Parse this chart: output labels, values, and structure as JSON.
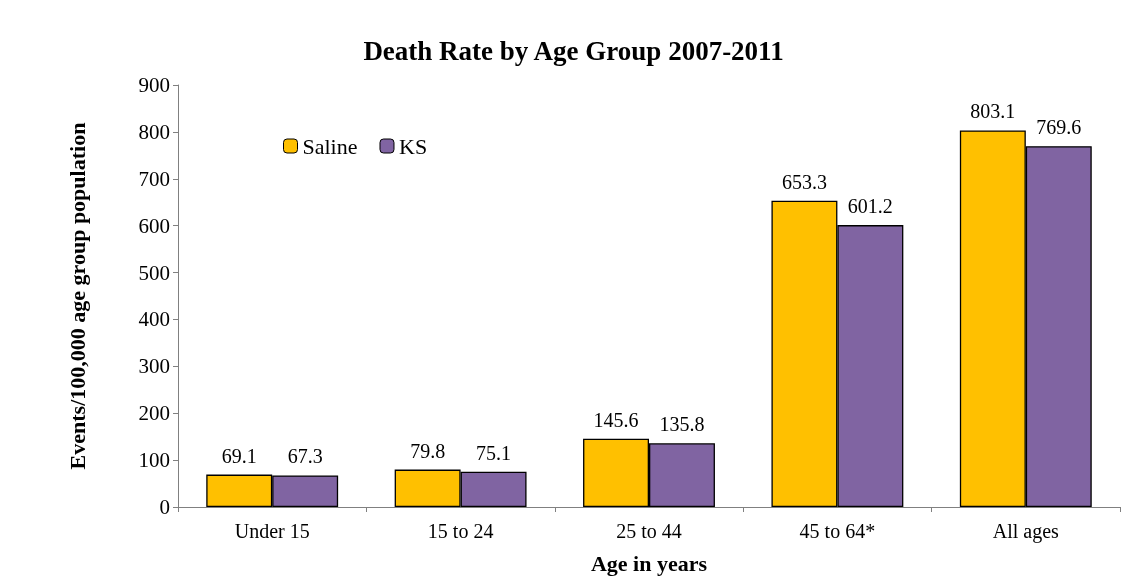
{
  "chart_data": {
    "type": "bar",
    "title": "Death Rate by Age Group 2007-2011",
    "xlabel": "Age in years",
    "ylabel": "Events/100,000 age group population",
    "categories": [
      "Under 15",
      "15 to 24",
      "25 to 44",
      "45 to 64*",
      "All ages"
    ],
    "series": [
      {
        "name": "Saline",
        "color": "#ffc000",
        "values": [
          69.1,
          79.8,
          145.6,
          653.3,
          803.1
        ]
      },
      {
        "name": "KS",
        "color": "#8064a2",
        "values": [
          67.3,
          75.1,
          135.8,
          601.2,
          769.6
        ]
      }
    ],
    "ylim": [
      0,
      900
    ],
    "yticks": [
      0,
      100,
      200,
      300,
      400,
      500,
      600,
      700,
      800,
      900
    ],
    "grid": false,
    "legend": "top left",
    "data_labels": true
  }
}
